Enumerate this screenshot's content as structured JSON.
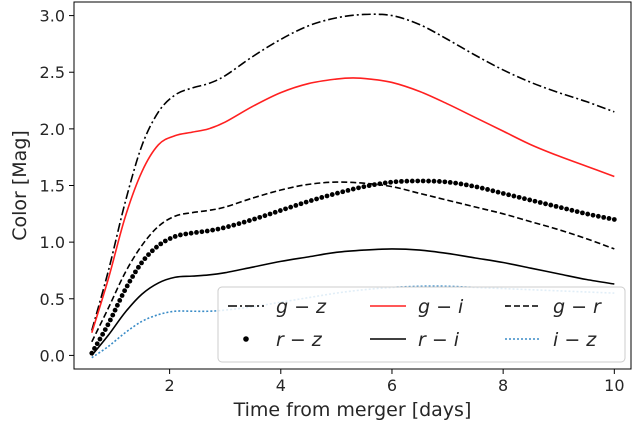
{
  "chart_data": {
    "type": "line",
    "title": "",
    "xlabel": "Time from merger [days]",
    "ylabel": "Color [Mag]",
    "xlim": [
      0.28,
      10.3
    ],
    "ylim": [
      -0.12,
      3.12
    ],
    "xticks": [
      "2",
      "4",
      "6",
      "8",
      "10"
    ],
    "yticks": [
      "0.0",
      "0.5",
      "1.0",
      "1.5",
      "2.0",
      "2.5",
      "3.0"
    ],
    "grid": false,
    "legend_placement": "lower-right",
    "series": [
      {
        "name": "g − z",
        "style": "dashdot",
        "color": "#000000",
        "points": [
          [
            0.6,
            0.22
          ],
          [
            0.9,
            0.75
          ],
          [
            1.2,
            1.35
          ],
          [
            1.5,
            1.85
          ],
          [
            1.8,
            2.15
          ],
          [
            2.1,
            2.3
          ],
          [
            2.4,
            2.36
          ],
          [
            2.7,
            2.4
          ],
          [
            3.0,
            2.47
          ],
          [
            3.5,
            2.64
          ],
          [
            4.0,
            2.79
          ],
          [
            4.5,
            2.91
          ],
          [
            5.0,
            2.98
          ],
          [
            5.5,
            3.01
          ],
          [
            6.0,
            3.0
          ],
          [
            6.5,
            2.92
          ],
          [
            7.0,
            2.79
          ],
          [
            7.5,
            2.65
          ],
          [
            8.0,
            2.52
          ],
          [
            8.5,
            2.41
          ],
          [
            9.0,
            2.32
          ],
          [
            9.5,
            2.24
          ],
          [
            10.0,
            2.15
          ]
        ]
      },
      {
        "name": "g − i",
        "style": "solid",
        "color": "#ff2020",
        "points": [
          [
            0.6,
            0.2
          ],
          [
            0.9,
            0.68
          ],
          [
            1.2,
            1.22
          ],
          [
            1.5,
            1.62
          ],
          [
            1.8,
            1.86
          ],
          [
            2.1,
            1.94
          ],
          [
            2.4,
            1.97
          ],
          [
            2.7,
            2.0
          ],
          [
            3.0,
            2.06
          ],
          [
            3.5,
            2.2
          ],
          [
            4.0,
            2.32
          ],
          [
            4.5,
            2.4
          ],
          [
            5.0,
            2.44
          ],
          [
            5.3,
            2.45
          ],
          [
            5.6,
            2.44
          ],
          [
            6.0,
            2.41
          ],
          [
            6.5,
            2.33
          ],
          [
            7.0,
            2.22
          ],
          [
            7.5,
            2.1
          ],
          [
            8.0,
            1.98
          ],
          [
            8.5,
            1.86
          ],
          [
            9.0,
            1.76
          ],
          [
            9.5,
            1.67
          ],
          [
            10.0,
            1.58
          ]
        ]
      },
      {
        "name": "g − r",
        "style": "dashed",
        "color": "#000000",
        "points": [
          [
            0.6,
            0.12
          ],
          [
            0.9,
            0.42
          ],
          [
            1.2,
            0.73
          ],
          [
            1.5,
            0.97
          ],
          [
            1.8,
            1.14
          ],
          [
            2.1,
            1.23
          ],
          [
            2.4,
            1.26
          ],
          [
            2.7,
            1.28
          ],
          [
            3.0,
            1.31
          ],
          [
            3.5,
            1.39
          ],
          [
            4.0,
            1.46
          ],
          [
            4.5,
            1.51
          ],
          [
            5.0,
            1.53
          ],
          [
            5.5,
            1.52
          ],
          [
            6.0,
            1.49
          ],
          [
            6.5,
            1.43
          ],
          [
            7.0,
            1.37
          ],
          [
            7.5,
            1.31
          ],
          [
            8.0,
            1.25
          ],
          [
            8.5,
            1.18
          ],
          [
            9.0,
            1.11
          ],
          [
            9.5,
            1.03
          ],
          [
            10.0,
            0.94
          ]
        ]
      },
      {
        "name": "r − z",
        "style": "dotted-markers",
        "color": "#000000",
        "points": [
          [
            0.6,
            0.02
          ],
          [
            0.9,
            0.28
          ],
          [
            1.2,
            0.58
          ],
          [
            1.5,
            0.82
          ],
          [
            1.8,
            0.97
          ],
          [
            2.1,
            1.05
          ],
          [
            2.4,
            1.08
          ],
          [
            2.7,
            1.1
          ],
          [
            3.0,
            1.13
          ],
          [
            3.5,
            1.2
          ],
          [
            4.0,
            1.28
          ],
          [
            4.5,
            1.36
          ],
          [
            5.0,
            1.43
          ],
          [
            5.5,
            1.49
          ],
          [
            6.0,
            1.53
          ],
          [
            6.5,
            1.54
          ],
          [
            7.0,
            1.53
          ],
          [
            7.5,
            1.49
          ],
          [
            8.0,
            1.43
          ],
          [
            8.5,
            1.37
          ],
          [
            9.0,
            1.31
          ],
          [
            9.5,
            1.25
          ],
          [
            10.0,
            1.2
          ]
        ]
      },
      {
        "name": "r − i",
        "style": "solid",
        "color": "#000000",
        "points": [
          [
            0.6,
            0.0
          ],
          [
            0.9,
            0.18
          ],
          [
            1.2,
            0.38
          ],
          [
            1.5,
            0.54
          ],
          [
            1.8,
            0.64
          ],
          [
            2.1,
            0.69
          ],
          [
            2.4,
            0.7
          ],
          [
            2.7,
            0.71
          ],
          [
            3.0,
            0.73
          ],
          [
            3.5,
            0.78
          ],
          [
            4.0,
            0.83
          ],
          [
            4.5,
            0.87
          ],
          [
            5.0,
            0.91
          ],
          [
            5.5,
            0.93
          ],
          [
            6.0,
            0.94
          ],
          [
            6.5,
            0.93
          ],
          [
            7.0,
            0.9
          ],
          [
            7.5,
            0.86
          ],
          [
            8.0,
            0.82
          ],
          [
            8.5,
            0.77
          ],
          [
            9.0,
            0.72
          ],
          [
            9.5,
            0.67
          ],
          [
            10.0,
            0.63
          ]
        ]
      },
      {
        "name": "i − z",
        "style": "dotted",
        "color": "#3a8cc7",
        "points": [
          [
            0.6,
            -0.02
          ],
          [
            0.9,
            0.08
          ],
          [
            1.2,
            0.2
          ],
          [
            1.5,
            0.3
          ],
          [
            1.8,
            0.36
          ],
          [
            2.1,
            0.39
          ],
          [
            2.4,
            0.39
          ],
          [
            2.7,
            0.39
          ],
          [
            3.0,
            0.4
          ],
          [
            3.5,
            0.43
          ],
          [
            4.0,
            0.47
          ],
          [
            4.5,
            0.51
          ],
          [
            5.0,
            0.55
          ],
          [
            5.5,
            0.58
          ],
          [
            6.0,
            0.6
          ],
          [
            6.5,
            0.61
          ],
          [
            7.0,
            0.61
          ],
          [
            7.5,
            0.6
          ],
          [
            8.0,
            0.59
          ],
          [
            8.5,
            0.58
          ],
          [
            9.0,
            0.57
          ],
          [
            9.5,
            0.56
          ],
          [
            10.0,
            0.55
          ]
        ]
      }
    ],
    "legend_order": [
      0,
      1,
      2,
      3,
      4,
      5
    ]
  }
}
